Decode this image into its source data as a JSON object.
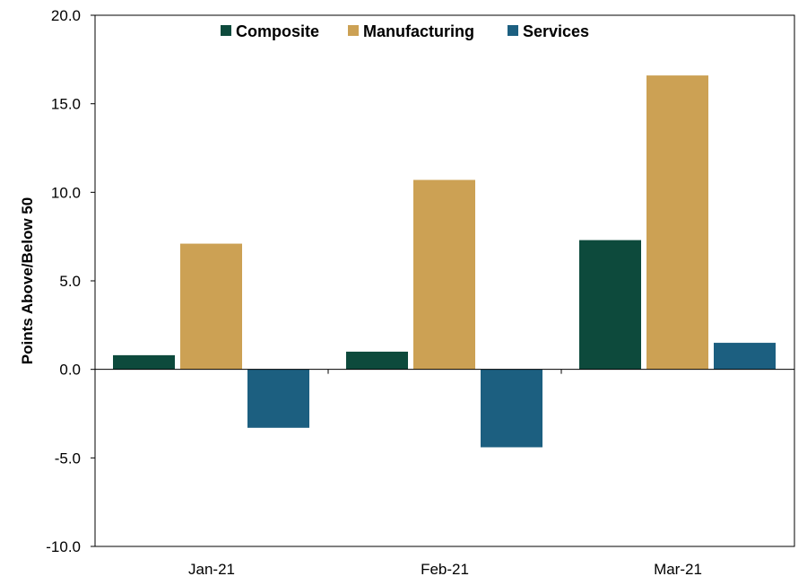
{
  "chart_data": {
    "type": "bar",
    "ylabel": "Points Above/Below 50",
    "ylim": [
      -10,
      20
    ],
    "yticks": [
      "20.0",
      "15.0",
      "10.0",
      "5.0",
      "0.0",
      "-5.0",
      "-10.0"
    ],
    "ytick_values": [
      20,
      15,
      10,
      5,
      0,
      -5,
      -10
    ],
    "categories": [
      "Jan-21",
      "Feb-21",
      "Mar-21"
    ],
    "series": [
      {
        "name": "Composite",
        "color": "#0d4a3c",
        "values": [
          0.8,
          1.0,
          7.3
        ]
      },
      {
        "name": "Manufacturing",
        "color": "#cca154",
        "values": [
          7.1,
          10.7,
          16.6
        ]
      },
      {
        "name": "Services",
        "color": "#1c5f80",
        "values": [
          -3.3,
          -4.4,
          1.5
        ]
      }
    ],
    "legend_position": "top-center",
    "grid": false
  }
}
